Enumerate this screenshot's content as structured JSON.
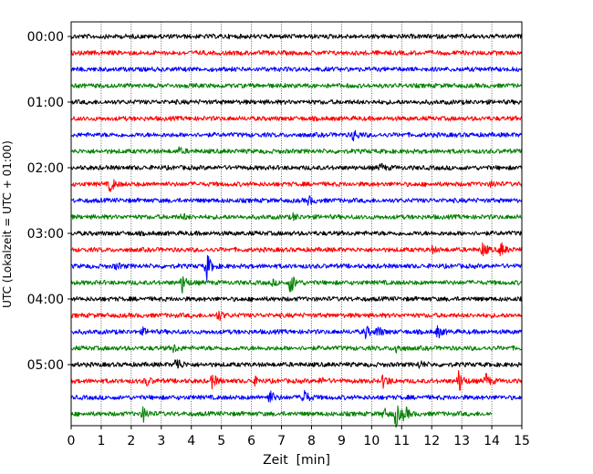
{
  "chart_data": {
    "type": "line",
    "subtype": "helicorder",
    "xlabel": "Zeit  [min]",
    "ylabel": "UTC (Lokalzeit = UTC + 01:00)",
    "xlim": [
      0,
      15
    ],
    "x_ticks": [
      0,
      1,
      2,
      3,
      4,
      5,
      6,
      7,
      8,
      9,
      10,
      11,
      12,
      13,
      14,
      15
    ],
    "x_grid": "dotted vertical lines at each minute",
    "y_tick_labels": [
      "00:00",
      "01:00",
      "02:00",
      "03:00",
      "04:00",
      "05:00"
    ],
    "trace_interval_minutes": 15,
    "trace_colors": [
      "#000000",
      "#ff0000",
      "#0000ff",
      "#008000"
    ],
    "traces": [
      {
        "start": "00:00",
        "color": "#000000",
        "events": []
      },
      {
        "start": "00:15",
        "color": "#ff0000",
        "events": []
      },
      {
        "start": "00:30",
        "color": "#0000ff",
        "events": []
      },
      {
        "start": "00:45",
        "color": "#008000",
        "events": []
      },
      {
        "start": "01:00",
        "color": "#000000",
        "events": []
      },
      {
        "start": "01:15",
        "color": "#ff0000",
        "events": []
      },
      {
        "start": "01:30",
        "color": "#0000ff",
        "events": [
          {
            "t": 9.4,
            "amp": 0.8
          }
        ]
      },
      {
        "start": "01:45",
        "color": "#008000",
        "events": [
          {
            "t": 3.6,
            "amp": 0.4
          }
        ]
      },
      {
        "start": "02:00",
        "color": "#000000",
        "events": [
          {
            "t": 10.3,
            "amp": 0.5
          }
        ]
      },
      {
        "start": "02:15",
        "color": "#ff0000",
        "events": [
          {
            "t": 1.3,
            "amp": 1.1
          },
          {
            "t": 14.0,
            "amp": 0.4
          }
        ]
      },
      {
        "start": "02:30",
        "color": "#0000ff",
        "events": [
          {
            "t": 7.9,
            "amp": 0.6
          }
        ]
      },
      {
        "start": "02:45",
        "color": "#008000",
        "events": [
          {
            "t": 3.7,
            "amp": 0.4
          },
          {
            "t": 7.4,
            "amp": 0.4
          }
        ]
      },
      {
        "start": "03:00",
        "color": "#000000",
        "events": []
      },
      {
        "start": "03:15",
        "color": "#ff0000",
        "events": [
          {
            "t": 13.7,
            "amp": 1.0
          },
          {
            "t": 14.3,
            "amp": 1.0
          },
          {
            "t": 12.0,
            "amp": 0.4
          }
        ]
      },
      {
        "start": "03:30",
        "color": "#0000ff",
        "events": [
          {
            "t": 4.5,
            "amp": 2.0
          },
          {
            "t": 1.5,
            "amp": 0.4
          }
        ]
      },
      {
        "start": "03:45",
        "color": "#008000",
        "events": [
          {
            "t": 3.7,
            "amp": 1.3
          },
          {
            "t": 7.3,
            "amp": 1.6
          },
          {
            "t": 6.7,
            "amp": 0.3
          }
        ]
      },
      {
        "start": "04:00",
        "color": "#000000",
        "events": []
      },
      {
        "start": "04:15",
        "color": "#ff0000",
        "events": [
          {
            "t": 4.9,
            "amp": 0.7
          }
        ]
      },
      {
        "start": "04:30",
        "color": "#0000ff",
        "events": [
          {
            "t": 9.8,
            "amp": 0.8
          },
          {
            "t": 10.2,
            "amp": 0.8
          },
          {
            "t": 12.2,
            "amp": 0.8
          },
          {
            "t": 2.4,
            "amp": 0.4
          }
        ]
      },
      {
        "start": "04:45",
        "color": "#008000",
        "events": [
          {
            "t": 3.4,
            "amp": 0.5
          },
          {
            "t": 10.8,
            "amp": 0.7
          }
        ]
      },
      {
        "start": "05:00",
        "color": "#000000",
        "events": [
          {
            "t": 3.5,
            "amp": 1.2
          },
          {
            "t": 11.6,
            "amp": 0.5
          }
        ]
      },
      {
        "start": "05:15",
        "color": "#ff0000",
        "events": [
          {
            "t": 4.7,
            "amp": 1.0
          },
          {
            "t": 10.4,
            "amp": 1.0
          },
          {
            "t": 12.9,
            "amp": 1.6
          },
          {
            "t": 13.8,
            "amp": 1.0
          },
          {
            "t": 2.5,
            "amp": 0.6
          },
          {
            "t": 6.1,
            "amp": 0.5
          },
          {
            "t": 8.3,
            "amp": 0.4
          }
        ]
      },
      {
        "start": "05:30",
        "color": "#0000ff",
        "events": [
          {
            "t": 6.6,
            "amp": 1.0
          },
          {
            "t": 7.7,
            "amp": 1.6
          }
        ]
      },
      {
        "start": "05:45",
        "color": "#008000",
        "end_minute": 14.0,
        "events": [
          {
            "t": 2.4,
            "amp": 1.0
          },
          {
            "t": 10.4,
            "amp": 0.7
          },
          {
            "t": 10.8,
            "amp": 1.8
          },
          {
            "t": 11.1,
            "amp": 0.9
          }
        ]
      }
    ]
  }
}
